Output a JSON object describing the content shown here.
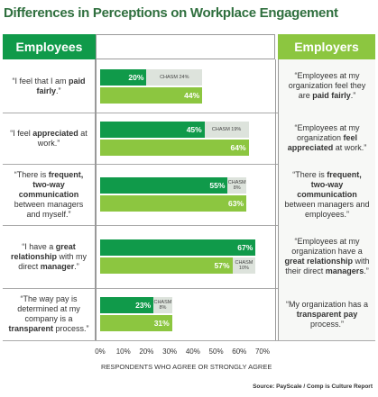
{
  "title": "Differences in Perceptions on Workplace Engagement",
  "headers": {
    "left": "Employees",
    "right": "Employers"
  },
  "employee_statements": [
    [
      {
        "text": "“I feel that I am "
      },
      {
        "text": "paid fairly",
        "bold": true
      },
      {
        "text": ".”"
      }
    ],
    [
      {
        "text": "“I feel "
      },
      {
        "text": "appreciated",
        "bold": true
      },
      {
        "text": " at work.”"
      }
    ],
    [
      {
        "text": "“There is "
      },
      {
        "text": "frequent, two-way communication",
        "bold": true
      },
      {
        "text": " between managers and myself.”"
      }
    ],
    [
      {
        "text": "“I have a "
      },
      {
        "text": "great relationship",
        "bold": true
      },
      {
        "text": " with my direct "
      },
      {
        "text": "manager",
        "bold": true
      },
      {
        "text": ".”"
      }
    ],
    [
      {
        "text": "“The way pay is determined at my company is a "
      },
      {
        "text": "transparent",
        "bold": true
      },
      {
        "text": " process.”"
      }
    ]
  ],
  "employer_statements": [
    [
      {
        "text": "“Employees at my organization feel they are "
      },
      {
        "text": "paid fairly",
        "bold": true
      },
      {
        "text": ".”"
      }
    ],
    [
      {
        "text": "“Employees at my organization "
      },
      {
        "text": "feel appreciated",
        "bold": true
      },
      {
        "text": " at work.”"
      }
    ],
    [
      {
        "text": "“There is "
      },
      {
        "text": "frequent, two-way communication",
        "bold": true
      },
      {
        "text": " between managers and employees.”"
      }
    ],
    [
      {
        "text": "“Employees at my organization have a "
      },
      {
        "text": "great relationship",
        "bold": true
      },
      {
        "text": " with their direct "
      },
      {
        "text": "managers",
        "bold": true
      },
      {
        "text": ".”"
      }
    ],
    [
      {
        "text": "“My organization has a "
      },
      {
        "text": "transparent pay",
        "bold": true
      },
      {
        "text": " process.”"
      }
    ]
  ],
  "chart_data": {
    "type": "bar",
    "orientation": "horizontal",
    "xlabel": "RESPONDENTS WHO AGREE OR STRONGLY AGREE",
    "xlim": [
      0,
      70
    ],
    "xticks": [
      {
        "value": 0,
        "label": "0%"
      },
      {
        "value": 10,
        "label": "10%"
      },
      {
        "value": 20,
        "label": "20%"
      },
      {
        "value": 30,
        "label": "30%"
      },
      {
        "value": 40,
        "label": "40%"
      },
      {
        "value": 50,
        "label": "50%"
      },
      {
        "value": 60,
        "label": "60%"
      },
      {
        "value": 70,
        "label": "70%"
      }
    ],
    "series": [
      {
        "name": "Employees",
        "color": "#109a4a",
        "values": [
          20,
          45,
          55,
          67,
          23
        ],
        "value_labels": [
          "20%",
          "45%",
          "55%",
          "67%",
          "23%"
        ]
      },
      {
        "name": "Employers",
        "color": "#8cc640",
        "values": [
          44,
          64,
          63,
          57,
          31
        ],
        "value_labels": [
          "44%",
          "64%",
          "63%",
          "57%",
          "31%"
        ]
      },
      {
        "color": "#dde3dc",
        "values": [
          24,
          19,
          8,
          10,
          8
        ],
        "value_labels": [
          "CHASM 24%",
          "CHASM 19%",
          "CHASM 8%",
          "CHASM 10%",
          "CHASM 8%"
        ]
      }
    ]
  },
  "source": "Source: PayScale / Comp is Culture Report"
}
